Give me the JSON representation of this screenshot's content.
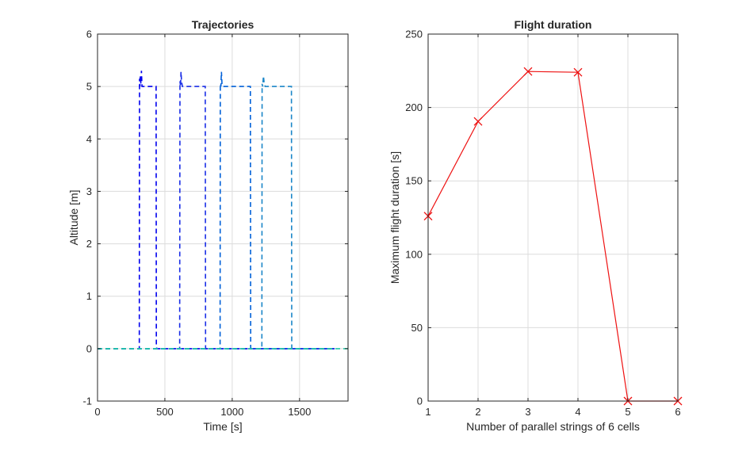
{
  "chart_data": [
    {
      "type": "line",
      "title": "Trajectories",
      "xlabel": "Time [s]",
      "ylabel": "Altitude [m]",
      "xlim": [
        0,
        1860
      ],
      "ylim": [
        -1,
        6
      ],
      "xticks": [
        0,
        500,
        1000,
        1500
      ],
      "yticks": [
        -1,
        0,
        1,
        2,
        3,
        4,
        5,
        6
      ],
      "grid": true,
      "line_style": "dashed",
      "series": [
        {
          "color": "#0000ee",
          "x": [
            0,
            310,
            312,
            315,
            318,
            322,
            326,
            330,
            340,
            345,
            435,
            437,
            440,
            1760
          ],
          "y": [
            0,
            0,
            5.15,
            5.0,
            5.2,
            5.05,
            5.3,
            5.0,
            5.0,
            5.0,
            5.0,
            0.05,
            0,
            0
          ]
        },
        {
          "color": "#1a2ee6",
          "x": [
            0,
            610,
            612,
            616,
            620,
            624,
            630,
            640,
            800,
            802,
            805,
            1760
          ],
          "y": [
            0,
            0,
            5.1,
            5.0,
            5.28,
            5.1,
            5.0,
            5.0,
            5.0,
            0.02,
            0,
            0
          ]
        },
        {
          "color": "#0060d8",
          "x": [
            0,
            910,
            912,
            916,
            920,
            924,
            930,
            940,
            1135,
            1137,
            1140,
            1760
          ],
          "y": [
            0,
            0,
            5.05,
            5.0,
            5.28,
            5.05,
            5.0,
            5.0,
            5.0,
            0.02,
            0,
            0
          ]
        },
        {
          "color": "#1a86c8",
          "x": [
            0,
            1220,
            1222,
            1226,
            1232,
            1238,
            1245,
            1260,
            1440,
            1442,
            1445,
            1760
          ],
          "y": [
            0,
            0,
            5.05,
            5.0,
            5.2,
            5.05,
            5.0,
            5.0,
            5.0,
            0.02,
            0,
            0
          ]
        },
        {
          "color": "#22c8a8",
          "x": [
            0,
            1860
          ],
          "y": [
            0,
            0
          ]
        }
      ]
    },
    {
      "type": "line",
      "title": "Flight duration",
      "xlabel": "Number of parallel strings of 6 cells",
      "ylabel": "Maximum flight duration [s]",
      "xlim": [
        1,
        6
      ],
      "ylim": [
        0,
        250
      ],
      "xticks": [
        1,
        2,
        3,
        4,
        5,
        6
      ],
      "yticks": [
        0,
        50,
        100,
        150,
        200,
        250
      ],
      "grid": true,
      "marker": "x",
      "color": "#ee1111",
      "x": [
        1,
        2,
        3,
        4,
        5,
        6
      ],
      "y": [
        126,
        190.5,
        224.5,
        224,
        0,
        0
      ]
    }
  ]
}
